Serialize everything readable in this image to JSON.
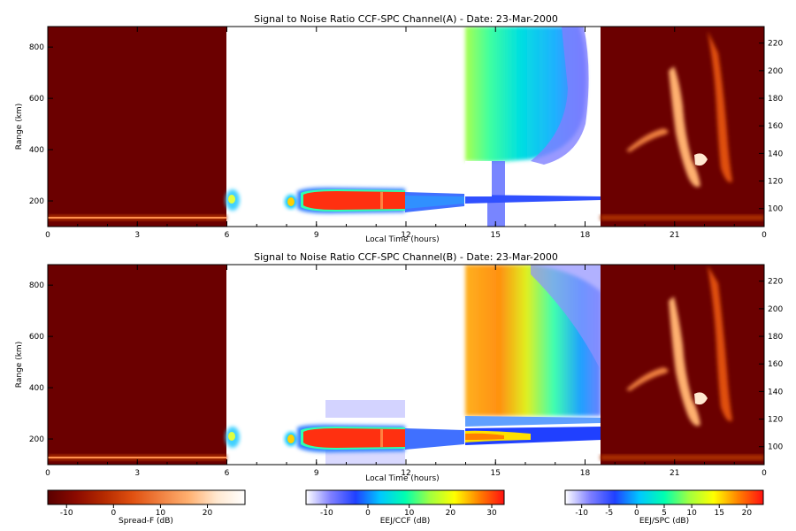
{
  "chart_data": [
    {
      "type": "heatmap",
      "title": "Signal to Noise Ratio CCF-SPC Channel(A) - Date: 23-Mar-2000",
      "xlabel": "Local Time (hours)",
      "ylabel": "Range (km)",
      "x_ticks": [
        "0",
        "3",
        "6",
        "9",
        "12",
        "15",
        "18",
        "21",
        "0"
      ],
      "xlim": [
        0,
        24
      ],
      "ylim": [
        100,
        880
      ],
      "y_ticks": [
        200,
        400,
        600,
        800
      ],
      "y2lim": [
        87,
        232
      ],
      "y2_ticks": [
        100,
        120,
        140,
        160,
        180,
        200,
        220
      ],
      "segments": [
        {
          "name": "Spread-F",
          "x_range": [
            0,
            6
          ],
          "colorbar": "Spread-F (dB)"
        },
        {
          "name": "EEJ/CCF",
          "x_range": [
            6,
            14
          ],
          "colorbar": "EEJ/CCF (dB)"
        },
        {
          "name": "EEJ/SPC",
          "x_range": [
            14,
            18.5
          ],
          "colorbar": "EEJ/SPC (dB)"
        },
        {
          "name": "Spread-F",
          "x_range": [
            18.5,
            24
          ],
          "colorbar": "Spread-F (dB)"
        }
      ]
    },
    {
      "type": "heatmap",
      "title": "Signal to Noise Ratio CCF-SPC Channel(B) - Date: 23-Mar-2000",
      "xlabel": "Local Time (hours)",
      "ylabel": "Range (km)",
      "x_ticks": [
        "0",
        "3",
        "6",
        "9",
        "12",
        "15",
        "18",
        "21",
        "0"
      ],
      "xlim": [
        0,
        24
      ],
      "ylim": [
        100,
        880
      ],
      "y_ticks": [
        200,
        400,
        600,
        800
      ],
      "y2lim": [
        87,
        232
      ],
      "y2_ticks": [
        100,
        120,
        140,
        160,
        180,
        200,
        220
      ],
      "segments": [
        {
          "name": "Spread-F",
          "x_range": [
            0,
            6
          ],
          "colorbar": "Spread-F (dB)"
        },
        {
          "name": "EEJ/CCF",
          "x_range": [
            6,
            14
          ],
          "colorbar": "EEJ/CCF (dB)"
        },
        {
          "name": "EEJ/SPC",
          "x_range": [
            14,
            18.5
          ],
          "colorbar": "EEJ/SPC (dB)"
        },
        {
          "name": "Spread-F",
          "x_range": [
            18.5,
            24
          ],
          "colorbar": "Spread-F (dB)"
        }
      ]
    }
  ],
  "colorbars": [
    {
      "label": "Spread-F (dB)",
      "range": [
        -14,
        28
      ],
      "ticks": [
        "-10",
        "0",
        "10",
        "20"
      ],
      "tick_values": [
        -10,
        0,
        10,
        20
      ],
      "colors": [
        "#5a0000",
        "#8b0a00",
        "#b52a00",
        "#e05010",
        "#f08040",
        "#ffb070",
        "#ffe8d0",
        "#ffffff"
      ]
    },
    {
      "label": "EEJ/CCF (dB)",
      "range": [
        -15,
        33
      ],
      "ticks": [
        "-10",
        "0",
        "10",
        "20",
        "30"
      ],
      "tick_values": [
        -10,
        0,
        10,
        20,
        30
      ],
      "colors": [
        "#ffffff",
        "#8080ff",
        "#2040ff",
        "#00c8ff",
        "#00ffb0",
        "#a0ff40",
        "#ffff00",
        "#ff8000",
        "#ff1010"
      ]
    },
    {
      "label": "EEJ/SPC (dB)",
      "range": [
        -13,
        23
      ],
      "ticks": [
        "-10",
        "-5",
        "0",
        "5",
        "10",
        "15",
        "20"
      ],
      "tick_values": [
        -10,
        -5,
        0,
        5,
        10,
        15,
        20
      ],
      "colors": [
        "#ffffff",
        "#8080ff",
        "#2040ff",
        "#00c8ff",
        "#00ffb0",
        "#a0ff40",
        "#ffff00",
        "#ff8000",
        "#ff1010"
      ]
    }
  ],
  "colors": {
    "spread_f_background": "#6b0000",
    "axis": "#000000"
  }
}
